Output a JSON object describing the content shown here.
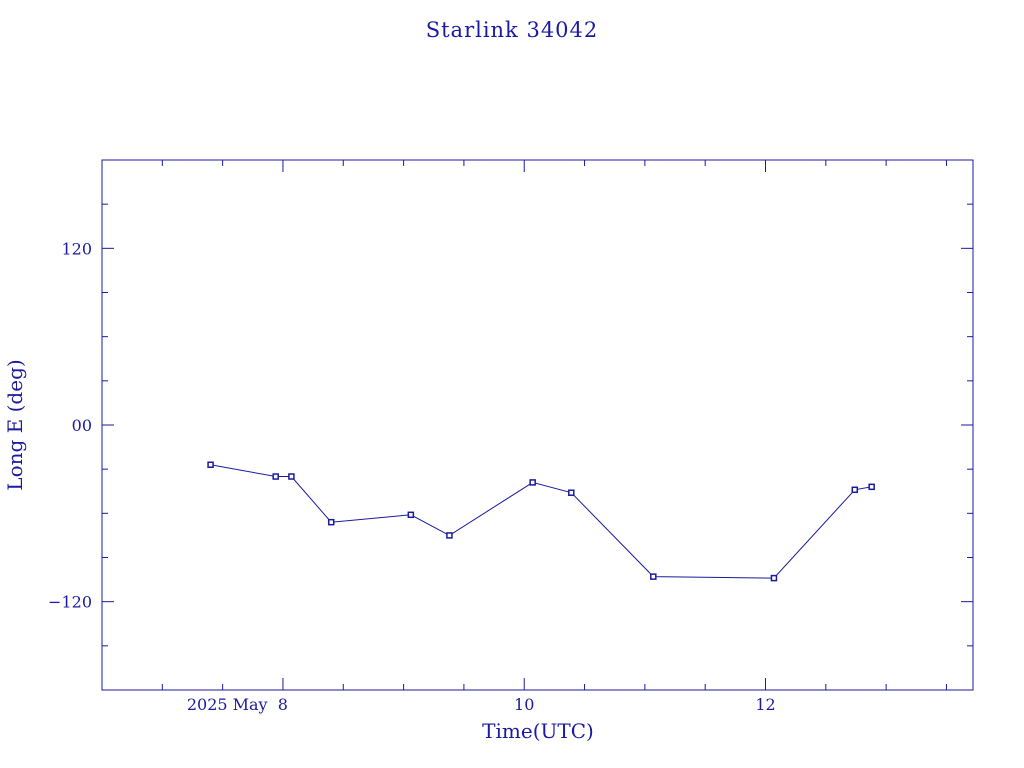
{
  "colors": {
    "ink": "#1a1a9e",
    "background": "#ffffff"
  },
  "chart_data": {
    "type": "line",
    "title": "Starlink 34042",
    "xlabel": "Time(UTC)",
    "ylabel": "Long E (deg)",
    "x_unit": "hour of 2025 May 8 (UTC)",
    "xlim": [
      6.5,
      13.72
    ],
    "ylim": [
      -180,
      180
    ],
    "x_ticks": [
      {
        "value": 8,
        "label": "2025 May  8"
      },
      {
        "value": 10,
        "label": "10"
      },
      {
        "value": 12,
        "label": "12"
      }
    ],
    "y_ticks": [
      {
        "value": 120,
        "label": "120"
      },
      {
        "value": 0,
        "label": "00"
      },
      {
        "value": -120,
        "label": "−120"
      }
    ],
    "grid": false,
    "legend": "none",
    "marker": "square",
    "series": [
      {
        "x": [
          7.4,
          7.94,
          8.07,
          8.4,
          9.06,
          9.38,
          10.07,
          10.39,
          11.07,
          12.07,
          12.74,
          12.88
        ],
        "y": [
          -27,
          -35,
          -35,
          -66,
          -61,
          -75,
          -39,
          -46,
          -103,
          -104,
          -44,
          -42
        ]
      }
    ]
  }
}
